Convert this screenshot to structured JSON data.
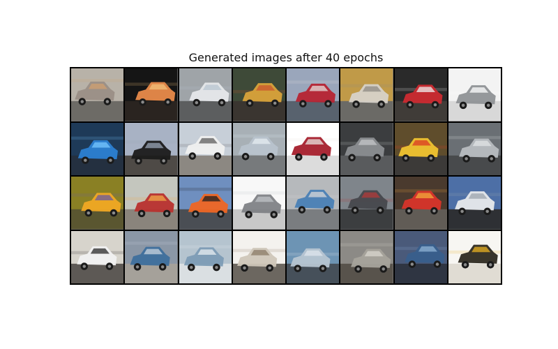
{
  "figure": {
    "title": "Generated images after 40 epochs"
  },
  "grid": {
    "rows": 4,
    "cols": 8,
    "subject": "car-icon",
    "tiles": [
      {
        "bg": "#b8b2a8",
        "ground": "#6d6b66",
        "car": "#9a8f86",
        "accent": "#d0a070"
      },
      {
        "bg": "#151515",
        "ground": "#2a2420",
        "car": "#e88a4a",
        "accent": "#f2c07a"
      },
      {
        "bg": "#9fa4a8",
        "ground": "#5c5e5f",
        "car": "#e6e8ea",
        "accent": "#b7c4d0"
      },
      {
        "bg": "#3e4a38",
        "ground": "#3a3530",
        "car": "#d9a23a",
        "accent": "#c9542e"
      },
      {
        "bg": "#9aa6bb",
        "ground": "#58626e",
        "car": "#b62332",
        "accent": "#e5e0dc"
      },
      {
        "bg": "#c09a48",
        "ground": "#6b6a66",
        "car": "#d7d2c9",
        "accent": "#8d8a83"
      },
      {
        "bg": "#2a2a2a",
        "ground": "#403c38",
        "car": "#cc2a30",
        "accent": "#ededed"
      },
      {
        "bg": "#f3f3f3",
        "ground": "#d8d8d8",
        "car": "#8f9296",
        "accent": "#ffffff"
      },
      {
        "bg": "#1e3a58",
        "ground": "#243040",
        "car": "#2c7fd2",
        "accent": "#78c7ff"
      },
      {
        "bg": "#a8b2c4",
        "ground": "#4e4a46",
        "car": "#1b1b1b",
        "accent": "#9aa6b5"
      },
      {
        "bg": "#c7cfd8",
        "ground": "#8c8882",
        "car": "#f0f0f0",
        "accent": "#5e5e5e"
      },
      {
        "bg": "#a8b0b6",
        "ground": "#777a7c",
        "car": "#b8c3cd",
        "accent": "#e6ecf2"
      },
      {
        "bg": "#ffffff",
        "ground": "#dcdcdc",
        "car": "#a51f2c",
        "accent": "#e9e4e0"
      },
      {
        "bg": "#3b3d3f",
        "ground": "#595b5d",
        "car": "#8b8e91",
        "accent": "#c4c6c8"
      },
      {
        "bg": "#5f4d2c",
        "ground": "#3c3a38",
        "car": "#efc330",
        "accent": "#db3a22"
      },
      {
        "bg": "#6a6f74",
        "ground": "#484a4c",
        "car": "#b8bcc0",
        "accent": "#e2e4e6"
      },
      {
        "bg": "#8a8024",
        "ground": "#5a5630",
        "car": "#f0a824",
        "accent": "#6a5aa0"
      },
      {
        "bg": "#c4c6be",
        "ground": "#8a847c",
        "car": "#b8302e",
        "accent": "#f2a94a"
      },
      {
        "bg": "#6f8fbf",
        "ground": "#4a4e54",
        "car": "#ee6624",
        "accent": "#1e1e1e"
      },
      {
        "bg": "#f8f8f8",
        "ground": "#c8c8c8",
        "car": "#7f8286",
        "accent": "#bfc3c7"
      },
      {
        "bg": "#b6b9bc",
        "ground": "#7a7d80",
        "car": "#4a7fb5",
        "accent": "#d8d8d8"
      },
      {
        "bg": "#7f858b",
        "ground": "#3c3e40",
        "car": "#47484d",
        "accent": "#b23a3a"
      },
      {
        "bg": "#4a3a2e",
        "ground": "#615c56",
        "car": "#d7342a",
        "accent": "#f3a93b"
      },
      {
        "bg": "#4d6fa6",
        "ground": "#2e3034",
        "car": "#e7e9eb",
        "accent": "#9ca4ad"
      },
      {
        "bg": "#d7d4cc",
        "ground": "#5d5955",
        "car": "#f1f1f1",
        "accent": "#2a2a2a"
      },
      {
        "bg": "#8b97a6",
        "ground": "#a5a19a",
        "car": "#3e6f9c",
        "accent": "#c9d4df"
      },
      {
        "bg": "#b5c4cf",
        "ground": "#dadfe2",
        "car": "#7d9cb5",
        "accent": "#e8eef2"
      },
      {
        "bg": "#f4f2ee",
        "ground": "#6c6760",
        "car": "#cfc6b8",
        "accent": "#8a7a66"
      },
      {
        "bg": "#6d94b4",
        "ground": "#46505a",
        "car": "#b7c5d2",
        "accent": "#dfe6ec"
      },
      {
        "bg": "#8c8a86",
        "ground": "#58534c",
        "car": "#a7a39b",
        "accent": "#d9d5cd"
      },
      {
        "bg": "#4a5a7a",
        "ground": "#2f3542",
        "car": "#385f8c",
        "accent": "#8fb3d6"
      },
      {
        "bg": "#f7f6f2",
        "ground": "#e0dcd3",
        "car": "#2e2a20",
        "accent": "#e8b022"
      }
    ]
  }
}
